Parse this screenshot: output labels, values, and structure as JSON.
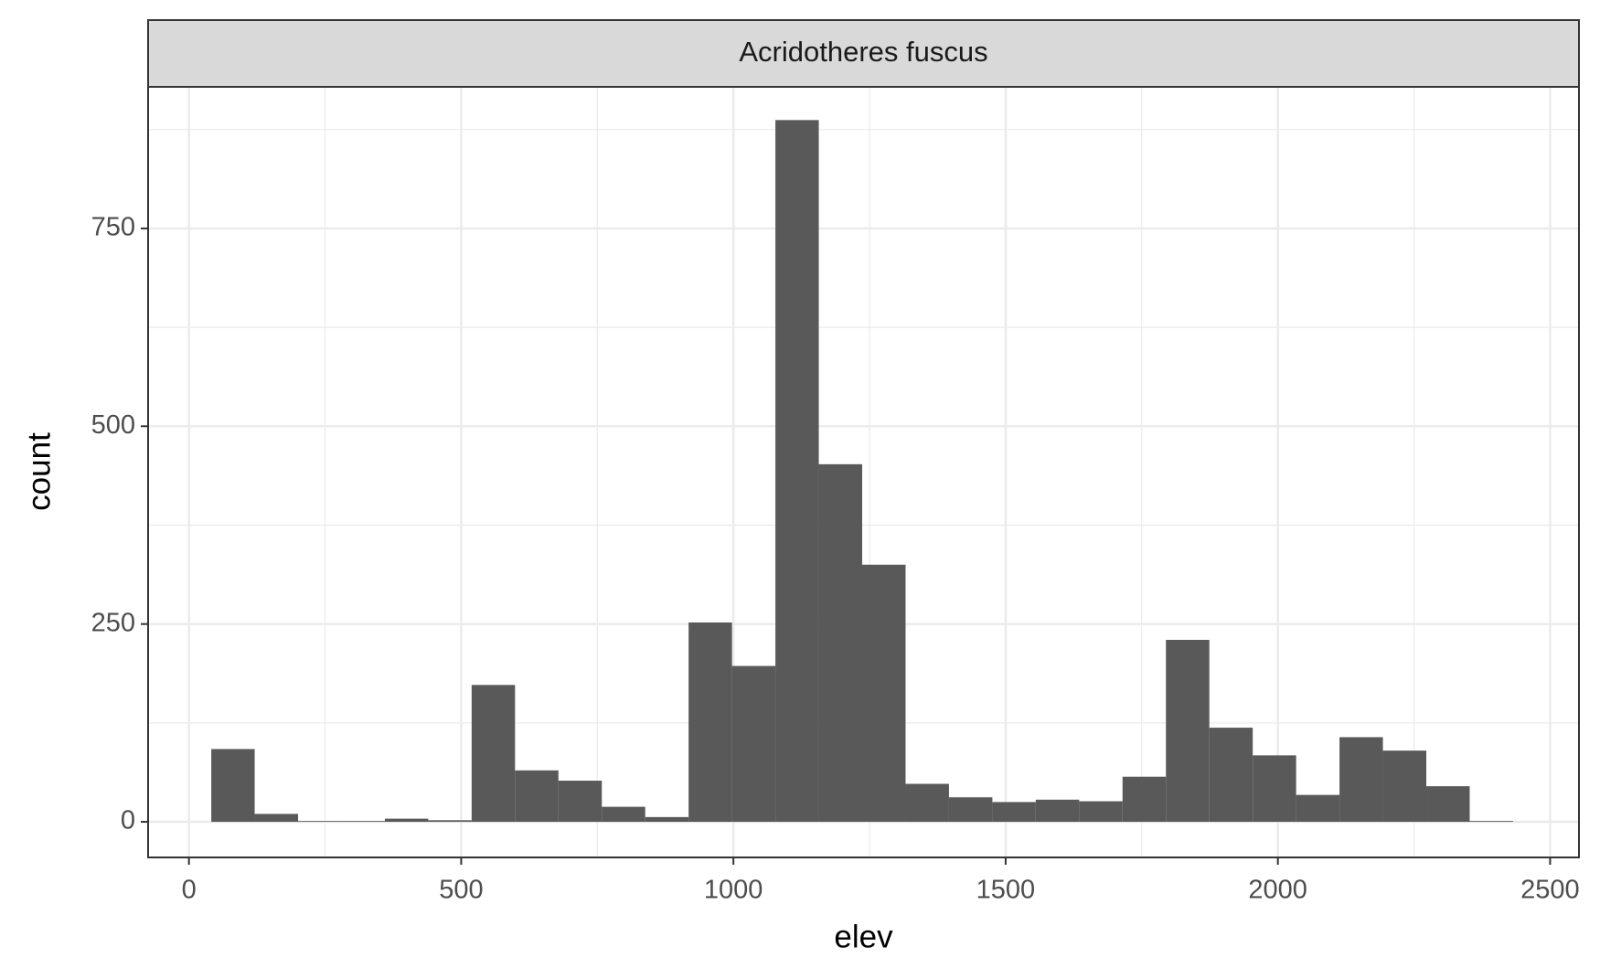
{
  "chart_data": {
    "type": "histogram",
    "title": "Acridotheres fuscus",
    "x_label": "elev",
    "y_label": "count",
    "bins": [
      41,
      120.7,
      200.4,
      280.1,
      359.8,
      439.5,
      519.2,
      598.9,
      678.6,
      758.3,
      838,
      917.7,
      997.4,
      1077.1,
      1156.8,
      1236.5,
      1316.2,
      1395.9,
      1475.6,
      1555.3,
      1635,
      1714.7,
      1794.4,
      1874.1,
      1953.8,
      2033.5,
      2113.2,
      2192.9,
      2272.6,
      2352.3,
      2432
    ],
    "values": [
      92,
      10,
      1,
      1,
      4,
      2,
      173,
      65,
      52,
      19,
      6,
      252,
      197,
      887,
      452,
      325,
      48,
      31,
      25,
      28,
      26,
      57,
      230,
      119,
      84,
      34,
      107,
      90,
      45,
      1
    ],
    "color": "#595959",
    "xlim": [
      -75,
      2553
    ],
    "ylim": [
      -45,
      929
    ],
    "xticks": [
      0,
      500,
      1000,
      1500,
      2000,
      2500
    ],
    "yticks": [
      0,
      250,
      500,
      750
    ],
    "grid": true
  }
}
